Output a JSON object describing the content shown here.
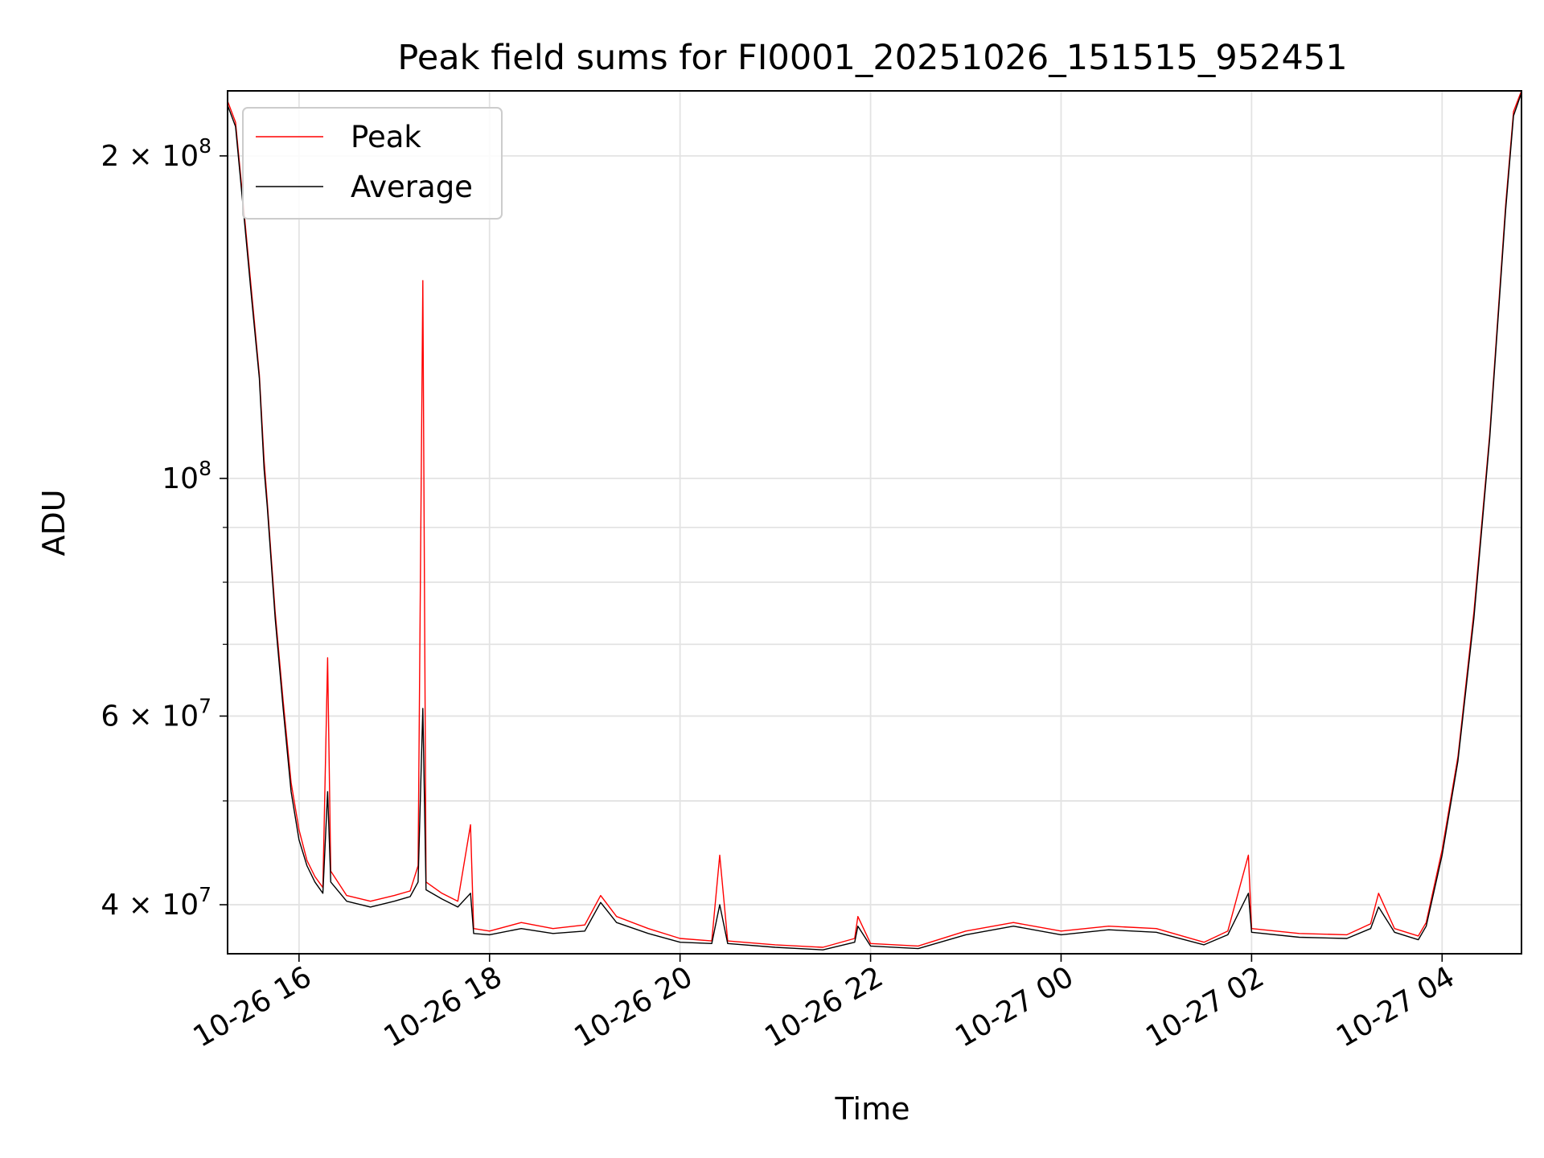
{
  "chart_data": {
    "type": "line",
    "title": "Peak field sums for FI0001_20251026_151515_952451",
    "xlabel": "Time",
    "ylabel": "ADU",
    "x_axis": {
      "type": "time",
      "start": "2025-10-26 15:15",
      "end": "2025-10-27 04:50",
      "ticks": [
        {
          "time": "2025-10-26 16:00",
          "label": "10-26 16"
        },
        {
          "time": "2025-10-26 18:00",
          "label": "10-26 18"
        },
        {
          "time": "2025-10-26 20:00",
          "label": "10-26 20"
        },
        {
          "time": "2025-10-26 22:00",
          "label": "10-26 22"
        },
        {
          "time": "2025-10-27 00:00",
          "label": "10-27 00"
        },
        {
          "time": "2025-10-27 02:00",
          "label": "10-27 02"
        },
        {
          "time": "2025-10-27 04:00",
          "label": "10-27 04"
        }
      ]
    },
    "y_axis": {
      "scale": "log",
      "range": [
        36000000,
        230000000
      ],
      "major_ticks": [
        {
          "value": 40000000,
          "label": "4 × 10",
          "exp": "7"
        },
        {
          "value": 60000000,
          "label": "6 × 10",
          "exp": "7"
        },
        {
          "value": 100000000,
          "label": "10",
          "exp": "8"
        },
        {
          "value": 200000000,
          "label": "2 × 10",
          "exp": "8"
        }
      ],
      "minor_ticks": [
        50000000,
        70000000,
        80000000,
        90000000
      ]
    },
    "grid": true,
    "legend_position": "top-left",
    "series": [
      {
        "name": "Peak",
        "color": "#ff0000",
        "points": [
          [
            "2025-10-26 15:15",
            225000000
          ],
          [
            "2025-10-26 15:20",
            215000000
          ],
          [
            "2025-10-26 15:25",
            180000000
          ],
          [
            "2025-10-26 15:30",
            150000000
          ],
          [
            "2025-10-26 15:35",
            125000000
          ],
          [
            "2025-10-26 15:38",
            104000000
          ],
          [
            "2025-10-26 15:40",
            95000000
          ],
          [
            "2025-10-26 15:45",
            75000000
          ],
          [
            "2025-10-26 15:50",
            62000000
          ],
          [
            "2025-10-26 15:55",
            52000000
          ],
          [
            "2025-10-26 16:00",
            47000000
          ],
          [
            "2025-10-26 16:05",
            44000000
          ],
          [
            "2025-10-26 16:10",
            42500000
          ],
          [
            "2025-10-26 16:15",
            41500000
          ],
          [
            "2025-10-26 16:18",
            68000000
          ],
          [
            "2025-10-26 16:20",
            43000000
          ],
          [
            "2025-10-26 16:30",
            40800000
          ],
          [
            "2025-10-26 16:45",
            40300000
          ],
          [
            "2025-10-26 17:00",
            40800000
          ],
          [
            "2025-10-26 17:10",
            41200000
          ],
          [
            "2025-10-26 17:15",
            43500000
          ],
          [
            "2025-10-26 17:18",
            153000000
          ],
          [
            "2025-10-26 17:20",
            42000000
          ],
          [
            "2025-10-26 17:30",
            41000000
          ],
          [
            "2025-10-26 17:40",
            40300000
          ],
          [
            "2025-10-26 17:48",
            47500000
          ],
          [
            "2025-10-26 17:50",
            38000000
          ],
          [
            "2025-10-26 18:00",
            37800000
          ],
          [
            "2025-10-26 18:20",
            38500000
          ],
          [
            "2025-10-26 18:40",
            38000000
          ],
          [
            "2025-10-26 19:00",
            38300000
          ],
          [
            "2025-10-26 19:10",
            40800000
          ],
          [
            "2025-10-26 19:20",
            39000000
          ],
          [
            "2025-10-26 19:40",
            38000000
          ],
          [
            "2025-10-26 20:00",
            37200000
          ],
          [
            "2025-10-26 20:20",
            37000000
          ],
          [
            "2025-10-26 20:25",
            44500000
          ],
          [
            "2025-10-26 20:30",
            37000000
          ],
          [
            "2025-10-26 21:00",
            36700000
          ],
          [
            "2025-10-26 21:30",
            36500000
          ],
          [
            "2025-10-26 21:50",
            37200000
          ],
          [
            "2025-10-26 21:52",
            39000000
          ],
          [
            "2025-10-26 22:00",
            36800000
          ],
          [
            "2025-10-26 22:30",
            36600000
          ],
          [
            "2025-10-26 23:00",
            37800000
          ],
          [
            "2025-10-26 23:30",
            38500000
          ],
          [
            "2025-10-27 00:00",
            37800000
          ],
          [
            "2025-10-27 00:30",
            38200000
          ],
          [
            "2025-10-27 01:00",
            38000000
          ],
          [
            "2025-10-27 01:30",
            36900000
          ],
          [
            "2025-10-27 01:45",
            37800000
          ],
          [
            "2025-10-27 01:58",
            44500000
          ],
          [
            "2025-10-27 02:00",
            38000000
          ],
          [
            "2025-10-27 02:30",
            37600000
          ],
          [
            "2025-10-27 03:00",
            37500000
          ],
          [
            "2025-10-27 03:15",
            38400000
          ],
          [
            "2025-10-27 03:20",
            41000000
          ],
          [
            "2025-10-27 03:30",
            38000000
          ],
          [
            "2025-10-27 03:45",
            37400000
          ],
          [
            "2025-10-27 03:50",
            38500000
          ],
          [
            "2025-10-27 04:00",
            45000000
          ],
          [
            "2025-10-27 04:10",
            55000000
          ],
          [
            "2025-10-27 04:20",
            75000000
          ],
          [
            "2025-10-27 04:30",
            110000000
          ],
          [
            "2025-10-27 04:40",
            180000000
          ],
          [
            "2025-10-27 04:45",
            220000000
          ],
          [
            "2025-10-27 04:50",
            230000000
          ]
        ]
      },
      {
        "name": "Average",
        "color": "#000000",
        "points": [
          [
            "2025-10-26 15:15",
            223000000
          ],
          [
            "2025-10-26 15:20",
            213000000
          ],
          [
            "2025-10-26 15:25",
            178000000
          ],
          [
            "2025-10-26 15:30",
            148000000
          ],
          [
            "2025-10-26 15:35",
            124000000
          ],
          [
            "2025-10-26 15:38",
            102000000
          ],
          [
            "2025-10-26 15:40",
            94000000
          ],
          [
            "2025-10-26 15:45",
            74000000
          ],
          [
            "2025-10-26 15:50",
            61000000
          ],
          [
            "2025-10-26 15:55",
            51000000
          ],
          [
            "2025-10-26 16:00",
            46000000
          ],
          [
            "2025-10-26 16:05",
            43500000
          ],
          [
            "2025-10-26 16:10",
            42000000
          ],
          [
            "2025-10-26 16:15",
            41000000
          ],
          [
            "2025-10-26 16:18",
            51000000
          ],
          [
            "2025-10-26 16:20",
            42000000
          ],
          [
            "2025-10-26 16:30",
            40300000
          ],
          [
            "2025-10-26 16:45",
            39800000
          ],
          [
            "2025-10-26 17:00",
            40300000
          ],
          [
            "2025-10-26 17:10",
            40700000
          ],
          [
            "2025-10-26 17:15",
            42000000
          ],
          [
            "2025-10-26 17:18",
            61000000
          ],
          [
            "2025-10-26 17:20",
            41300000
          ],
          [
            "2025-10-26 17:30",
            40500000
          ],
          [
            "2025-10-26 17:40",
            39800000
          ],
          [
            "2025-10-26 17:48",
            41000000
          ],
          [
            "2025-10-26 17:50",
            37600000
          ],
          [
            "2025-10-26 18:00",
            37500000
          ],
          [
            "2025-10-26 18:20",
            38000000
          ],
          [
            "2025-10-26 18:40",
            37600000
          ],
          [
            "2025-10-26 19:00",
            37800000
          ],
          [
            "2025-10-26 19:10",
            40200000
          ],
          [
            "2025-10-26 19:20",
            38500000
          ],
          [
            "2025-10-26 19:40",
            37600000
          ],
          [
            "2025-10-26 20:00",
            36900000
          ],
          [
            "2025-10-26 20:20",
            36800000
          ],
          [
            "2025-10-26 20:25",
            40000000
          ],
          [
            "2025-10-26 20:30",
            36800000
          ],
          [
            "2025-10-26 21:00",
            36500000
          ],
          [
            "2025-10-26 21:30",
            36300000
          ],
          [
            "2025-10-26 21:50",
            36900000
          ],
          [
            "2025-10-26 21:52",
            38200000
          ],
          [
            "2025-10-26 22:00",
            36600000
          ],
          [
            "2025-10-26 22:30",
            36400000
          ],
          [
            "2025-10-26 23:00",
            37500000
          ],
          [
            "2025-10-26 23:30",
            38200000
          ],
          [
            "2025-10-27 00:00",
            37500000
          ],
          [
            "2025-10-27 00:30",
            37900000
          ],
          [
            "2025-10-27 01:00",
            37700000
          ],
          [
            "2025-10-27 01:30",
            36700000
          ],
          [
            "2025-10-27 01:45",
            37500000
          ],
          [
            "2025-10-27 01:58",
            41000000
          ],
          [
            "2025-10-27 02:00",
            37700000
          ],
          [
            "2025-10-27 02:30",
            37300000
          ],
          [
            "2025-10-27 03:00",
            37200000
          ],
          [
            "2025-10-27 03:15",
            38000000
          ],
          [
            "2025-10-27 03:20",
            39800000
          ],
          [
            "2025-10-27 03:30",
            37700000
          ],
          [
            "2025-10-27 03:45",
            37100000
          ],
          [
            "2025-10-27 03:50",
            38200000
          ],
          [
            "2025-10-27 04:00",
            44500000
          ],
          [
            "2025-10-27 04:10",
            54500000
          ],
          [
            "2025-10-27 04:20",
            74000000
          ],
          [
            "2025-10-27 04:30",
            109000000
          ],
          [
            "2025-10-27 04:40",
            178000000
          ],
          [
            "2025-10-27 04:45",
            218000000
          ],
          [
            "2025-10-27 04:50",
            229000000
          ]
        ]
      }
    ]
  }
}
